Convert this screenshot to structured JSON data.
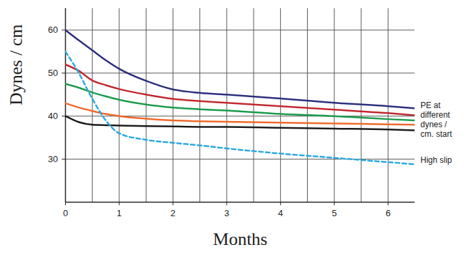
{
  "chart_data": {
    "type": "line",
    "xlabel": "Months",
    "ylabel": "Dynes / cm",
    "x": [
      0,
      0.25,
      0.5,
      0.75,
      1,
      1.5,
      2,
      2.5,
      3,
      4,
      5,
      6,
      6.5
    ],
    "series": [
      {
        "color": "#2b2d7c",
        "line_style": "solid",
        "values": [
          60,
          57.6,
          55.3,
          53,
          51,
          48.2,
          46.2,
          45.4,
          45,
          44.1,
          43.1,
          42.3,
          41.8
        ]
      },
      {
        "color": "#c1272d",
        "line_style": "solid",
        "values": [
          52,
          50.5,
          48.3,
          47.2,
          46.3,
          45,
          44,
          43.5,
          43.1,
          42.3,
          41.5,
          40.7,
          40.2
        ]
      },
      {
        "color": "#1b9a4a",
        "line_style": "solid",
        "values": [
          47.5,
          46.6,
          45.5,
          44.6,
          43.8,
          42.7,
          42,
          41.6,
          41.3,
          40.5,
          40,
          39.3,
          39
        ]
      },
      {
        "color": "#f0682a",
        "line_style": "solid",
        "values": [
          43,
          42,
          41.2,
          40.5,
          40,
          39.4,
          39,
          38.8,
          38.7,
          38.5,
          38.3,
          38.1,
          38
        ]
      },
      {
        "color": "#1a1a1a",
        "line_style": "solid",
        "values": [
          40,
          38.6,
          38,
          37.9,
          37.8,
          37.7,
          37.6,
          37.5,
          37.5,
          37.3,
          37.1,
          36.9,
          36.7
        ]
      },
      {
        "name": "High slip",
        "color": "#29a8df",
        "line_style": "dashed",
        "values": [
          55,
          50,
          44,
          39,
          36,
          34.5,
          33.8,
          33.2,
          32.5,
          31.3,
          30.3,
          29.3,
          28.8
        ]
      }
    ],
    "annotations": [
      "PE at\ndifferent\ndynes /\ncm. start"
    ],
    "xlim": [
      0,
      6.5
    ],
    "xticks": [
      0,
      {
        "value": 0.5,
        "label": null
      },
      1,
      {
        "value": 1.5,
        "label": null
      },
      2,
      {
        "value": 2.5,
        "label": null
      },
      3,
      {
        "value": 3.5,
        "label": null
      },
      4,
      {
        "value": 4.5,
        "label": null
      },
      5,
      {
        "value": 5.5,
        "label": null
      },
      6
    ],
    "ylim": [
      20,
      65
    ],
    "yticks": [
      30,
      40,
      50,
      60
    ],
    "grid": true
  }
}
